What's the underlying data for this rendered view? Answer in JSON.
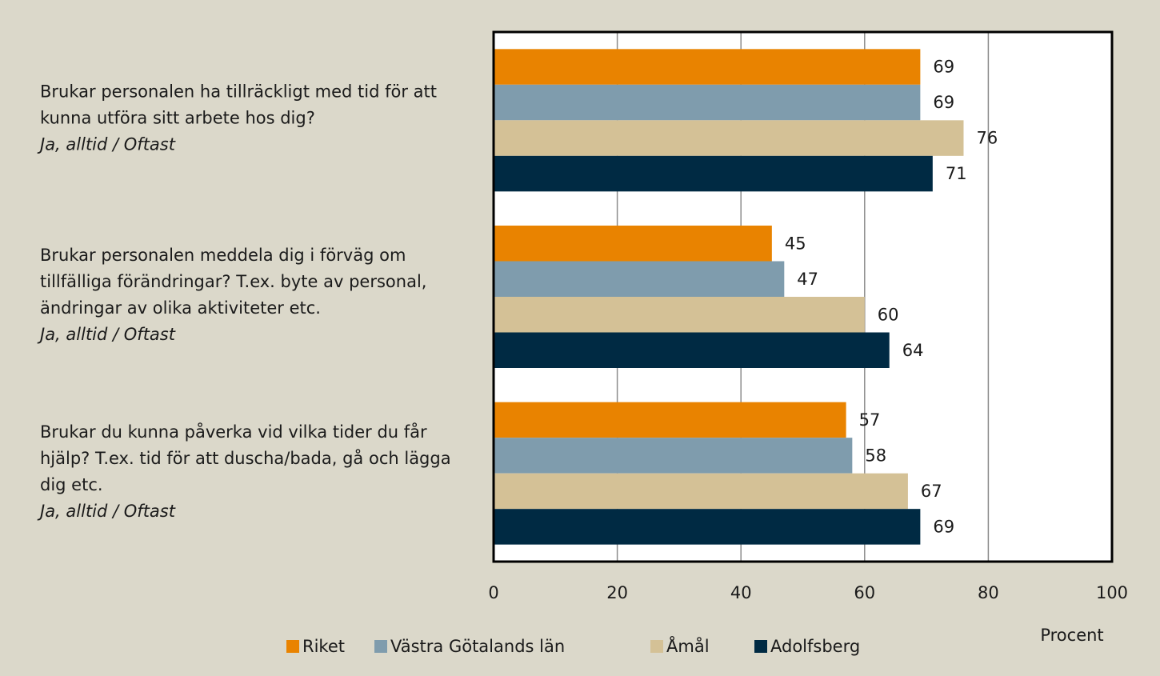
{
  "chart_data": {
    "type": "bar",
    "orientation": "horizontal",
    "categories": [
      "Brukar personalen ha tillräckligt med tid för att kunna utföra sitt arbete hos dig?",
      "Brukar personalen meddela dig i förväg om tillfälliga förändringar? T.ex. byte av personal, ändringar av olika aktiviteter etc.",
      "Brukar du kunna påverka vid vilka tider du får hjälp? T.ex. tid för att duscha/bada, gå och lägga dig etc."
    ],
    "category_note": "Ja, alltid / Oftast",
    "series": [
      {
        "name": "Riket",
        "color": "#e98300",
        "values": [
          69,
          45,
          57
        ]
      },
      {
        "name": "Västra Götalands län",
        "color": "#7f9cad",
        "values": [
          69,
          47,
          58
        ]
      },
      {
        "name": "Åmål",
        "color": "#d4c196",
        "values": [
          76,
          60,
          67
        ]
      },
      {
        "name": "Adolfsberg",
        "color": "#002a43",
        "values": [
          71,
          64,
          69
        ]
      }
    ],
    "xlabel": "Procent",
    "xlim": [
      0,
      100
    ],
    "xticks": [
      0,
      20,
      40,
      60,
      80,
      100
    ],
    "grid": true,
    "legend": "bottom"
  }
}
